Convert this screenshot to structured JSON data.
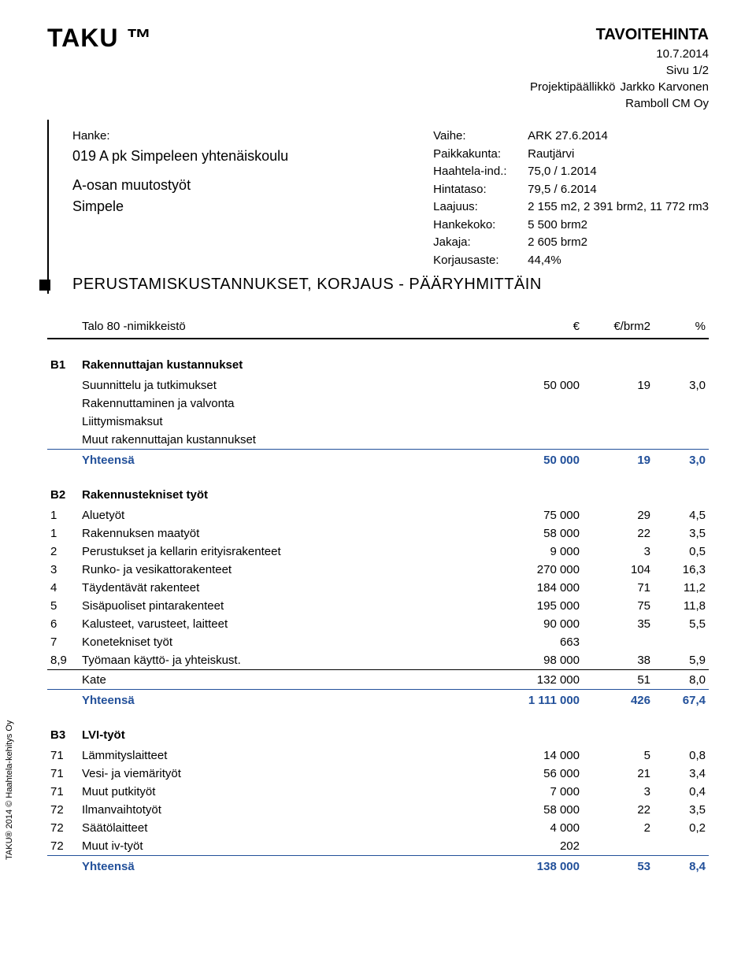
{
  "brand": "TAKU ™",
  "header": {
    "title": "TAVOITEHINTA",
    "date": "10.7.2014",
    "page": "Sivu 1/2",
    "pm_label": "Projektipäällikkö",
    "pm_name": "Jarkko Karvonen",
    "company": "Ramboll CM Oy"
  },
  "project_left": {
    "hanke_label": "Hanke:",
    "hanke_name": "019 A pk Simpeleen yhtenäiskoulu",
    "line3": "A-osan muutostyöt",
    "line4": "Simpele"
  },
  "project_right": [
    {
      "label": "Vaihe:",
      "value": "ARK 27.6.2014"
    },
    {
      "label": "Paikkakunta:",
      "value": "Rautjärvi"
    },
    {
      "label": "Haahtela-ind.:",
      "value": "75,0 / 1.2014"
    },
    {
      "label": "Hintataso:",
      "value": "79,5 / 6.2014"
    },
    {
      "label": "Laajuus:",
      "value": "2 155 m2, 2 391 brm2, 11 772 rm3"
    },
    {
      "label": "Hankekoko:",
      "value": "5 500 brm2"
    },
    {
      "label": "Jakaja:",
      "value": "2 605 brm2"
    },
    {
      "label": "Korjausaste:",
      "value": "44,4%"
    }
  ],
  "section_title": "PERUSTAMISKUSTANNUKSET, KORJAUS - PÄÄRYHMITTÄIN",
  "columns": {
    "name": "Talo 80 -nimikkeistö",
    "eur": "€",
    "brm": "€/brm2",
    "pct": "%"
  },
  "groups": [
    {
      "code": "B1",
      "title": "Rakennuttajan kustannukset",
      "rows": [
        {
          "code": "",
          "name": "Suunnittelu ja tutkimukset",
          "eur": "50 000",
          "brm": "19",
          "pct": "3,0"
        },
        {
          "code": "",
          "name": "Rakennuttaminen ja valvonta",
          "eur": "",
          "brm": "",
          "pct": ""
        },
        {
          "code": "",
          "name": "Liittymismaksut",
          "eur": "",
          "brm": "",
          "pct": ""
        },
        {
          "code": "",
          "name": "Muut rakennuttajan kustannukset",
          "eur": "",
          "brm": "",
          "pct": ""
        }
      ],
      "sum": {
        "name": "Yhteensä",
        "eur": "50 000",
        "brm": "19",
        "pct": "3,0"
      }
    },
    {
      "code": "B2",
      "title": "Rakennustekniset työt",
      "rows": [
        {
          "code": "1",
          "name": "Aluetyöt",
          "eur": "75 000",
          "brm": "29",
          "pct": "4,5"
        },
        {
          "code": "1",
          "name": "Rakennuksen maatyöt",
          "eur": "58 000",
          "brm": "22",
          "pct": "3,5"
        },
        {
          "code": "2",
          "name": "Perustukset ja kellarin erityisrakenteet",
          "eur": "9 000",
          "brm": "3",
          "pct": "0,5"
        },
        {
          "code": "3",
          "name": "Runko- ja vesikattorakenteet",
          "eur": "270 000",
          "brm": "104",
          "pct": "16,3"
        },
        {
          "code": "4",
          "name": "Täydentävät rakenteet",
          "eur": "184 000",
          "brm": "71",
          "pct": "11,2"
        },
        {
          "code": "5",
          "name": "Sisäpuoliset pintarakenteet",
          "eur": "195 000",
          "brm": "75",
          "pct": "11,8"
        },
        {
          "code": "6",
          "name": "Kalusteet, varusteet, laitteet",
          "eur": "90 000",
          "brm": "35",
          "pct": "5,5"
        },
        {
          "code": "7",
          "name": "Konetekniset työt",
          "eur": "663",
          "brm": "",
          "pct": ""
        },
        {
          "code": "8,9",
          "name": "Työmaan käyttö- ja yhteiskust.",
          "eur": "98 000",
          "brm": "38",
          "pct": "5,9"
        }
      ],
      "kate": {
        "name": "Kate",
        "eur": "132 000",
        "brm": "51",
        "pct": "8,0"
      },
      "sum": {
        "name": "Yhteensä",
        "eur": "1 111 000",
        "brm": "426",
        "pct": "67,4"
      }
    },
    {
      "code": "B3",
      "title": "LVI-työt",
      "rows": [
        {
          "code": "71",
          "name": "Lämmityslaitteet",
          "eur": "14 000",
          "brm": "5",
          "pct": "0,8"
        },
        {
          "code": "71",
          "name": "Vesi- ja viemärityöt",
          "eur": "56 000",
          "brm": "21",
          "pct": "3,4"
        },
        {
          "code": "71",
          "name": "Muut putkityöt",
          "eur": "7 000",
          "brm": "3",
          "pct": "0,4"
        },
        {
          "code": "72",
          "name": "Ilmanvaihtotyöt",
          "eur": "58 000",
          "brm": "22",
          "pct": "3,5"
        },
        {
          "code": "72",
          "name": "Säätölaitteet",
          "eur": "4 000",
          "brm": "2",
          "pct": "0,2"
        },
        {
          "code": "72",
          "name": "Muut iv-työt",
          "eur": "202",
          "brm": "",
          "pct": ""
        }
      ],
      "sum": {
        "name": "Yhteensä",
        "eur": "138 000",
        "brm": "53",
        "pct": "8,4"
      }
    }
  ],
  "sidetext": "TAKU® 2014 © Haahtela-kehitys Oy",
  "colors": {
    "sum": "#22509a",
    "text": "#000000",
    "bg": "#ffffff"
  }
}
